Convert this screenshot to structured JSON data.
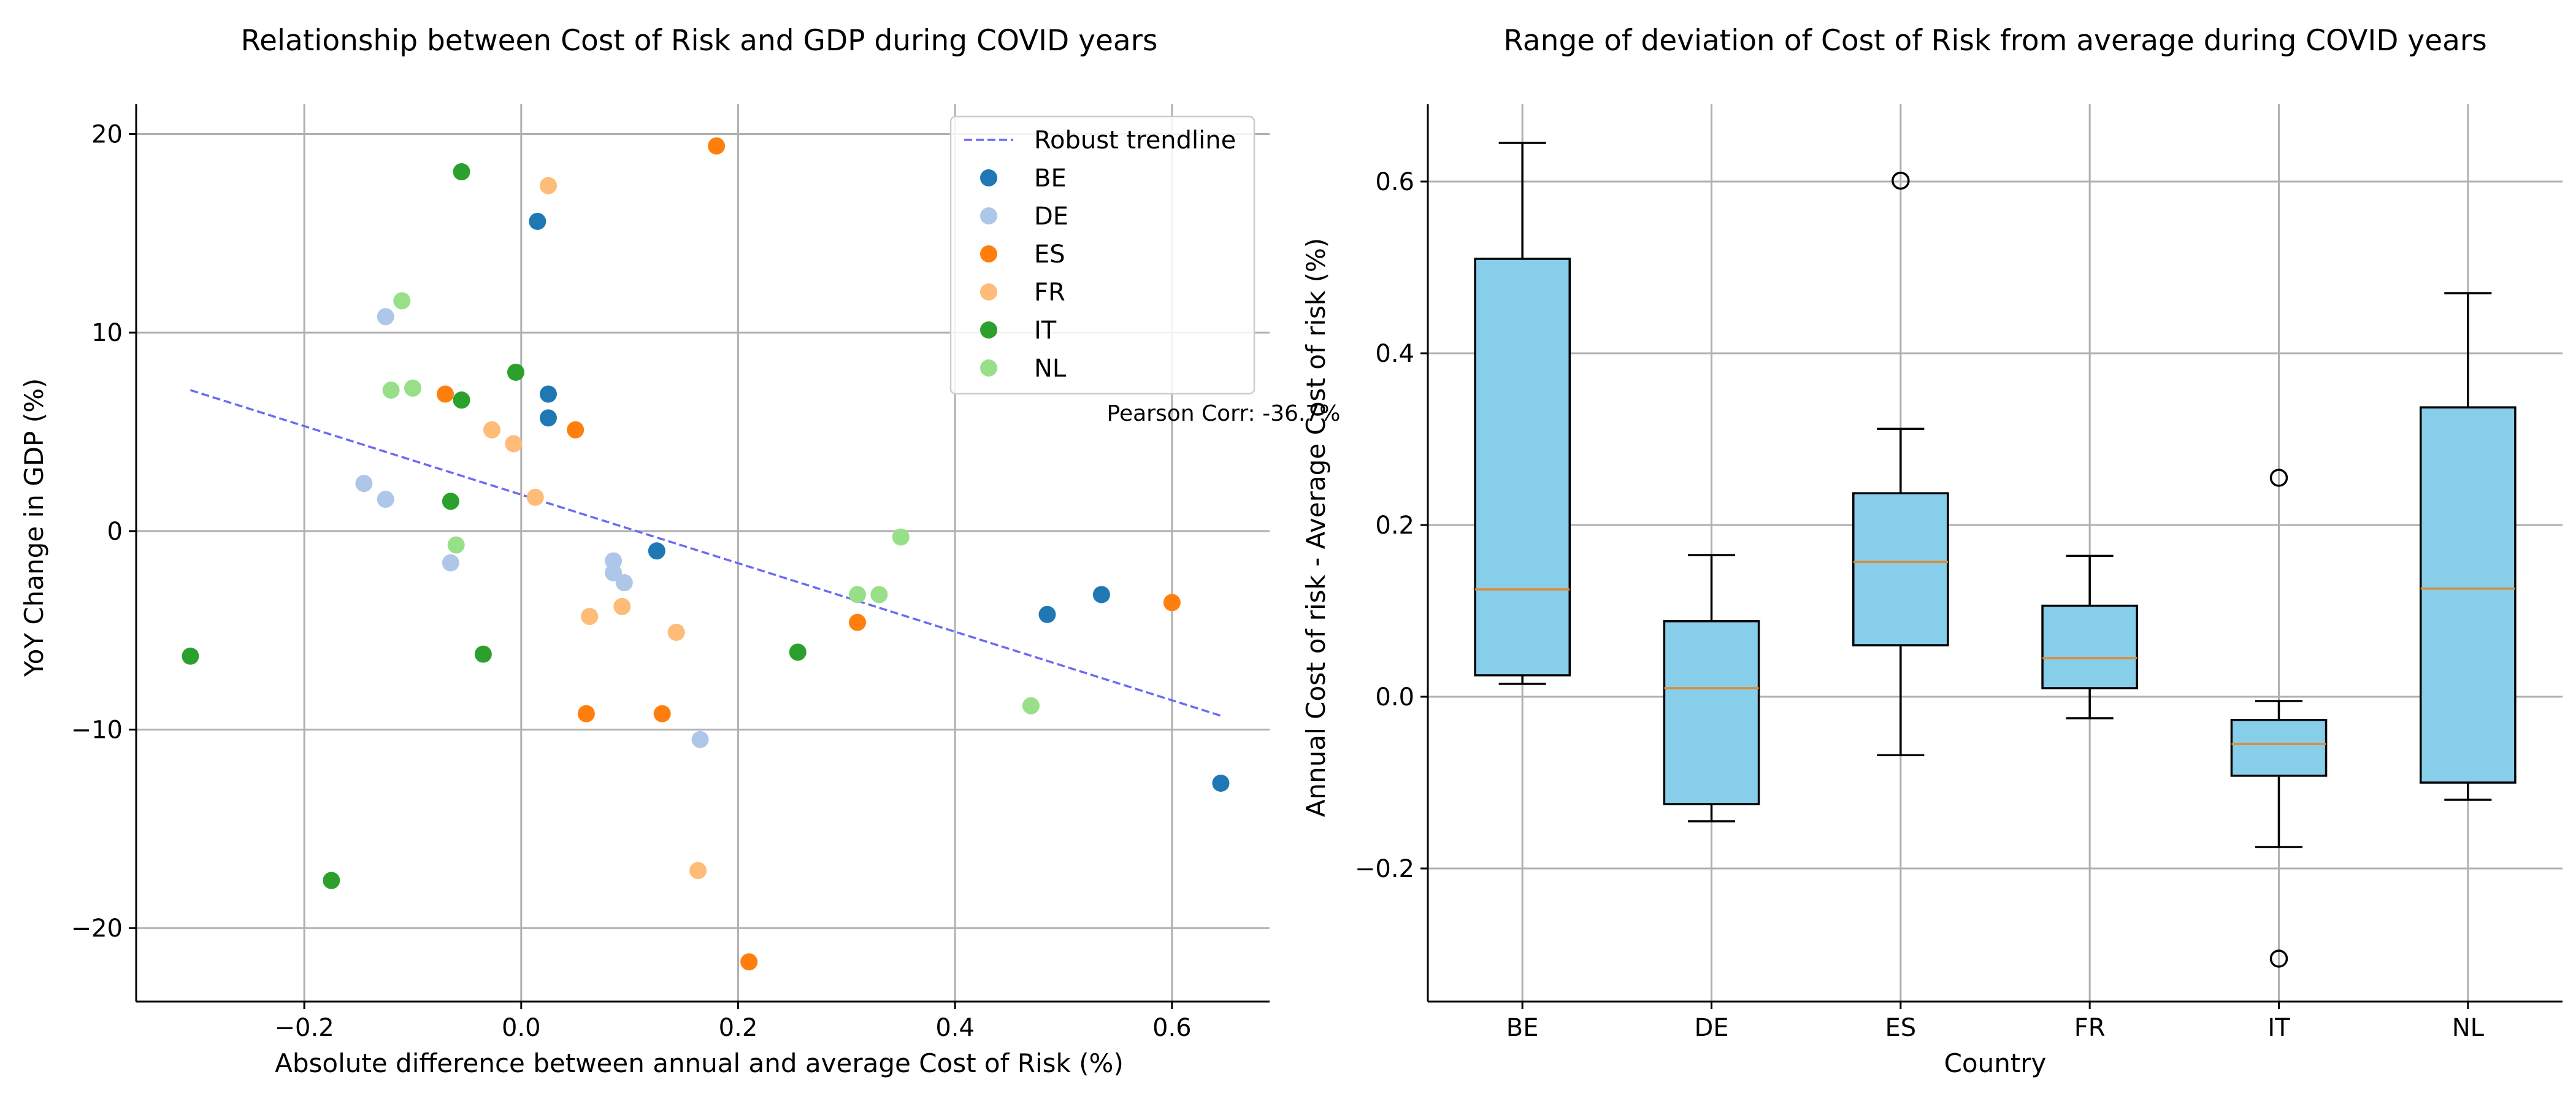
{
  "chart_data": [
    {
      "type": "scatter",
      "title": "Relationship between Cost of Risk and GDP during COVID years",
      "xlabel": "Absolute difference between annual and average Cost of Risk (%)",
      "ylabel": "YoY Change in GDP (%)",
      "xlim": [
        -0.355,
        0.69
      ],
      "ylim": [
        -23.7,
        21.5
      ],
      "xticks": [
        -0.2,
        0.0,
        0.2,
        0.4,
        0.6
      ],
      "xtick_labels": [
        "−0.2",
        "0.0",
        "0.2",
        "0.4",
        "0.6"
      ],
      "yticks": [
        -20,
        -10,
        0,
        10,
        20
      ],
      "ytick_labels": [
        "−20",
        "−10",
        "0",
        "10",
        "20"
      ],
      "grid": true,
      "legend_position": "top-right",
      "trendline": {
        "name": "Robust trendline",
        "color": "#6b6bf5",
        "x": [
          -0.305,
          0.645
        ],
        "y": [
          7.1,
          -9.3
        ]
      },
      "annotation": "Pearson Corr: -36.7%",
      "series": [
        {
          "name": "BE",
          "color": "#1f77b4",
          "points": [
            [
              0.015,
              15.6
            ],
            [
              0.025,
              6.9
            ],
            [
              0.025,
              5.7
            ],
            [
              0.125,
              -1.0
            ],
            [
              0.485,
              -4.2
            ],
            [
              0.535,
              -3.2
            ],
            [
              0.645,
              -12.7
            ]
          ]
        },
        {
          "name": "DE",
          "color": "#aec7e8",
          "points": [
            [
              -0.125,
              10.8
            ],
            [
              -0.145,
              2.4
            ],
            [
              -0.125,
              1.6
            ],
            [
              -0.065,
              -1.6
            ],
            [
              0.085,
              -1.5
            ],
            [
              0.085,
              -2.1
            ],
            [
              0.095,
              -2.6
            ],
            [
              0.165,
              -10.5
            ]
          ]
        },
        {
          "name": "ES",
          "color": "#ff7f0e",
          "points": [
            [
              0.18,
              19.4
            ],
            [
              -0.07,
              6.9
            ],
            [
              0.05,
              5.1
            ],
            [
              0.31,
              -4.6
            ],
            [
              0.6,
              -3.6
            ],
            [
              0.06,
              -9.2
            ],
            [
              0.13,
              -9.2
            ],
            [
              0.21,
              -21.7
            ]
          ]
        },
        {
          "name": "FR",
          "color": "#ffbb78",
          "points": [
            [
              0.025,
              17.4
            ],
            [
              -0.027,
              5.1
            ],
            [
              -0.007,
              4.4
            ],
            [
              0.013,
              1.7
            ],
            [
              0.063,
              -4.3
            ],
            [
              0.093,
              -3.8
            ],
            [
              0.143,
              -5.1
            ],
            [
              0.163,
              -17.1
            ]
          ]
        },
        {
          "name": "IT",
          "color": "#2ca02c",
          "points": [
            [
              -0.055,
              18.1
            ],
            [
              -0.005,
              8.0
            ],
            [
              -0.055,
              6.6
            ],
            [
              -0.065,
              1.5
            ],
            [
              -0.035,
              -6.2
            ],
            [
              -0.305,
              -6.3
            ],
            [
              0.255,
              -6.1
            ],
            [
              -0.175,
              -17.6
            ]
          ]
        },
        {
          "name": "NL",
          "color": "#98df8a",
          "points": [
            [
              -0.11,
              11.6
            ],
            [
              -0.12,
              7.1
            ],
            [
              -0.1,
              7.2
            ],
            [
              -0.06,
              -0.7
            ],
            [
              0.35,
              -0.3
            ],
            [
              0.31,
              -3.2
            ],
            [
              0.33,
              -3.2
            ],
            [
              0.47,
              -8.8
            ]
          ]
        }
      ]
    },
    {
      "type": "box",
      "title": "Range of deviation of Cost of Risk from average during COVID years",
      "xlabel": "Country",
      "ylabel": "Annual Cost of risk - Average Cost of risk (%)",
      "ylim": [
        -0.355,
        0.69
      ],
      "yticks": [
        -0.2,
        0.0,
        0.2,
        0.4,
        0.6
      ],
      "ytick_labels": [
        "−0.2",
        "0.0",
        "0.2",
        "0.4",
        "0.6"
      ],
      "grid": true,
      "box_color": "#87ceeb",
      "median_color": "#e08a2e",
      "categories": [
        "BE",
        "DE",
        "ES",
        "FR",
        "IT",
        "NL"
      ],
      "boxes": [
        {
          "min": 0.015,
          "q1": 0.025,
          "median": 0.125,
          "q3": 0.51,
          "max": 0.645,
          "outliers": []
        },
        {
          "min": -0.145,
          "q1": -0.125,
          "median": 0.01,
          "q3": 0.088,
          "max": 0.165,
          "outliers": []
        },
        {
          "min": -0.068,
          "q1": 0.06,
          "median": 0.157,
          "q3": 0.237,
          "max": 0.312,
          "outliers": [
            0.601
          ]
        },
        {
          "min": -0.025,
          "q1": 0.01,
          "median": 0.045,
          "q3": 0.106,
          "max": 0.164,
          "outliers": []
        },
        {
          "min": -0.175,
          "q1": -0.092,
          "median": -0.055,
          "q3": -0.027,
          "max": -0.005,
          "outliers": [
            0.255,
            -0.305
          ]
        },
        {
          "min": -0.12,
          "q1": -0.1,
          "median": 0.126,
          "q3": 0.337,
          "max": 0.47,
          "outliers": []
        }
      ]
    }
  ]
}
